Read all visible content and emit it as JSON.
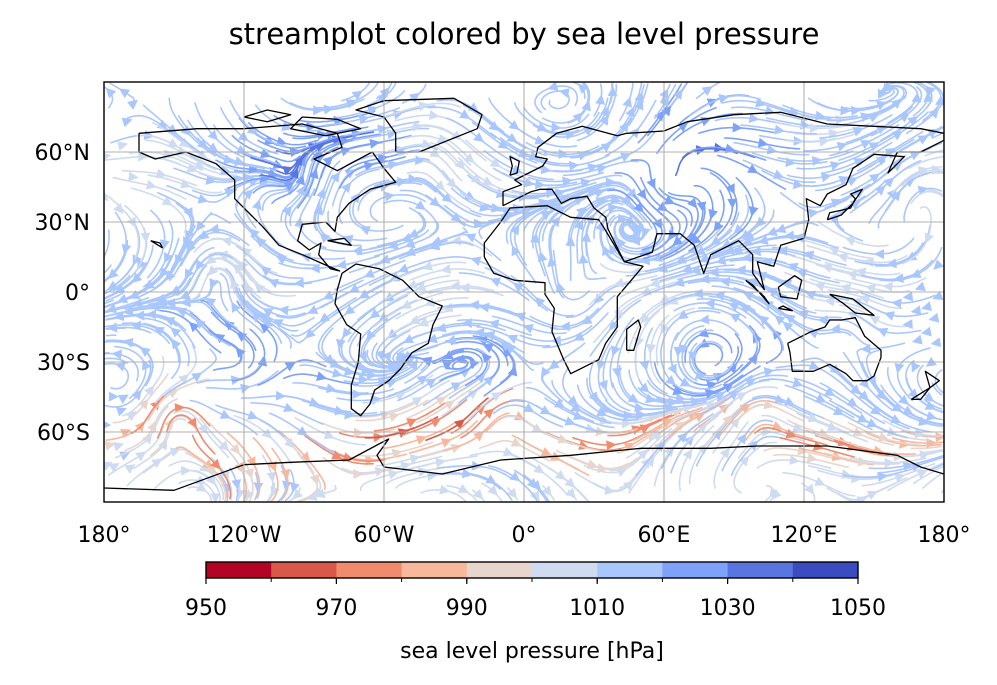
{
  "title": "streamplot colored by sea level pressure",
  "map": {
    "projection": "PlateCarree",
    "lon_range": [
      -180,
      180
    ],
    "lat_range": [
      -90,
      90
    ],
    "gridlines": true,
    "lon_ticks": [
      -180,
      -120,
      -60,
      0,
      60,
      120,
      180
    ],
    "lat_ticks": [
      60,
      30,
      0,
      -30,
      -60
    ],
    "x_tick_labels": [
      "180°",
      "120°W",
      "60°W",
      "0°",
      "60°E",
      "120°E",
      "180°"
    ],
    "y_tick_labels": [
      "60°N",
      "30°N",
      "0°",
      "30°S",
      "60°S"
    ],
    "field": "streamlines of near-surface wind colored by sea level pressure",
    "low_pressure_regions": [
      "Southern Ocean storm belt",
      "North Pacific / Kamchatka",
      "North Atlantic high latitudes"
    ],
    "high_pressure_regions": [
      "North American / Arctic",
      "Siberia / Central Asia",
      "subtropical oceans"
    ]
  },
  "colorbar": {
    "label": "sea level pressure [hPa]",
    "min": 950,
    "max": 1050,
    "step": 10,
    "tick_values": [
      950,
      970,
      990,
      1010,
      1030,
      1050
    ],
    "tick_labels": [
      "950",
      "970",
      "990",
      "1010",
      "1030",
      "1050"
    ],
    "colors": [
      "#b40426",
      "#d95847",
      "#f08b6e",
      "#f7b89c",
      "#e8d6cc",
      "#cfdbf0",
      "#aac7fd",
      "#7ea2fa",
      "#5875e1",
      "#3b4cc0"
    ]
  }
}
